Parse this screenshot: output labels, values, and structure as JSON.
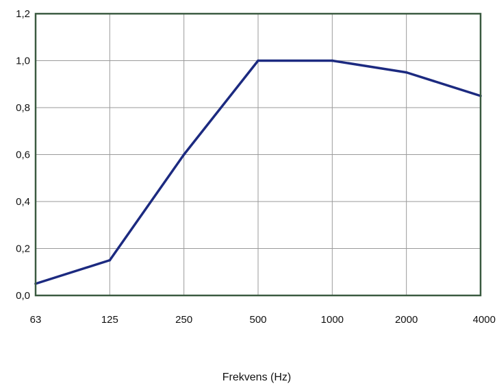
{
  "chart_data": {
    "type": "line",
    "title": "",
    "xlabel": "Frekvens (Hz)",
    "ylabel": "",
    "categories": [
      "63",
      "125",
      "250",
      "500",
      "1000",
      "2000",
      "4000"
    ],
    "series": [
      {
        "values": [
          0.05,
          0.15,
          0.6,
          1.0,
          1.0,
          0.95,
          0.85
        ]
      }
    ],
    "ylim": [
      0,
      1.2
    ],
    "yticks": [
      0.0,
      0.2,
      0.4,
      0.6,
      0.8,
      1.0,
      1.2
    ],
    "ytick_labels": [
      "0,0",
      "0,2",
      "0,4",
      "0,6",
      "0,8",
      "1,0",
      "1,2"
    ],
    "grid": true,
    "line_color": "#1c2a80",
    "grid_color": "#9a9a9a",
    "frame_color": "#3a5a40"
  }
}
